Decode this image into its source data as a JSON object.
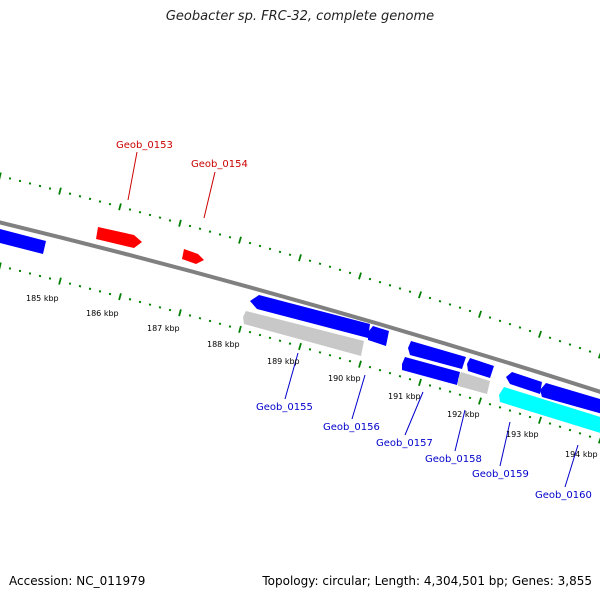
{
  "title": "Geobacter sp. FRC-32, complete genome",
  "footer": {
    "accession": "Accession: NC_011979",
    "summary": "Topology: circular; Length: 4,304,501 bp; Genes: 3,855"
  },
  "colors": {
    "forward_gene": "#ff0000",
    "reverse_gene": "#0000ff",
    "pseudo_gene": "#c8c8c8",
    "rna_gene": "#00ffff",
    "backbone": "#808080",
    "ticks": "#008000",
    "forward_label": "#cc0000",
    "reverse_label": "#0000cc"
  },
  "scale_labels": [
    "185 kbp",
    "186 kbp",
    "187 kbp",
    "188 kbp",
    "189 kbp",
    "190 kbp",
    "191 kbp",
    "192 kbp",
    "193 kbp",
    "194 kbp"
  ],
  "forward_gene_labels": [
    "Geob_0153",
    "Geob_0154"
  ],
  "reverse_gene_labels": [
    "Geob_0155",
    "Geob_0156",
    "Geob_0157",
    "Geob_0158",
    "Geob_0159",
    "Geob_0160"
  ]
}
